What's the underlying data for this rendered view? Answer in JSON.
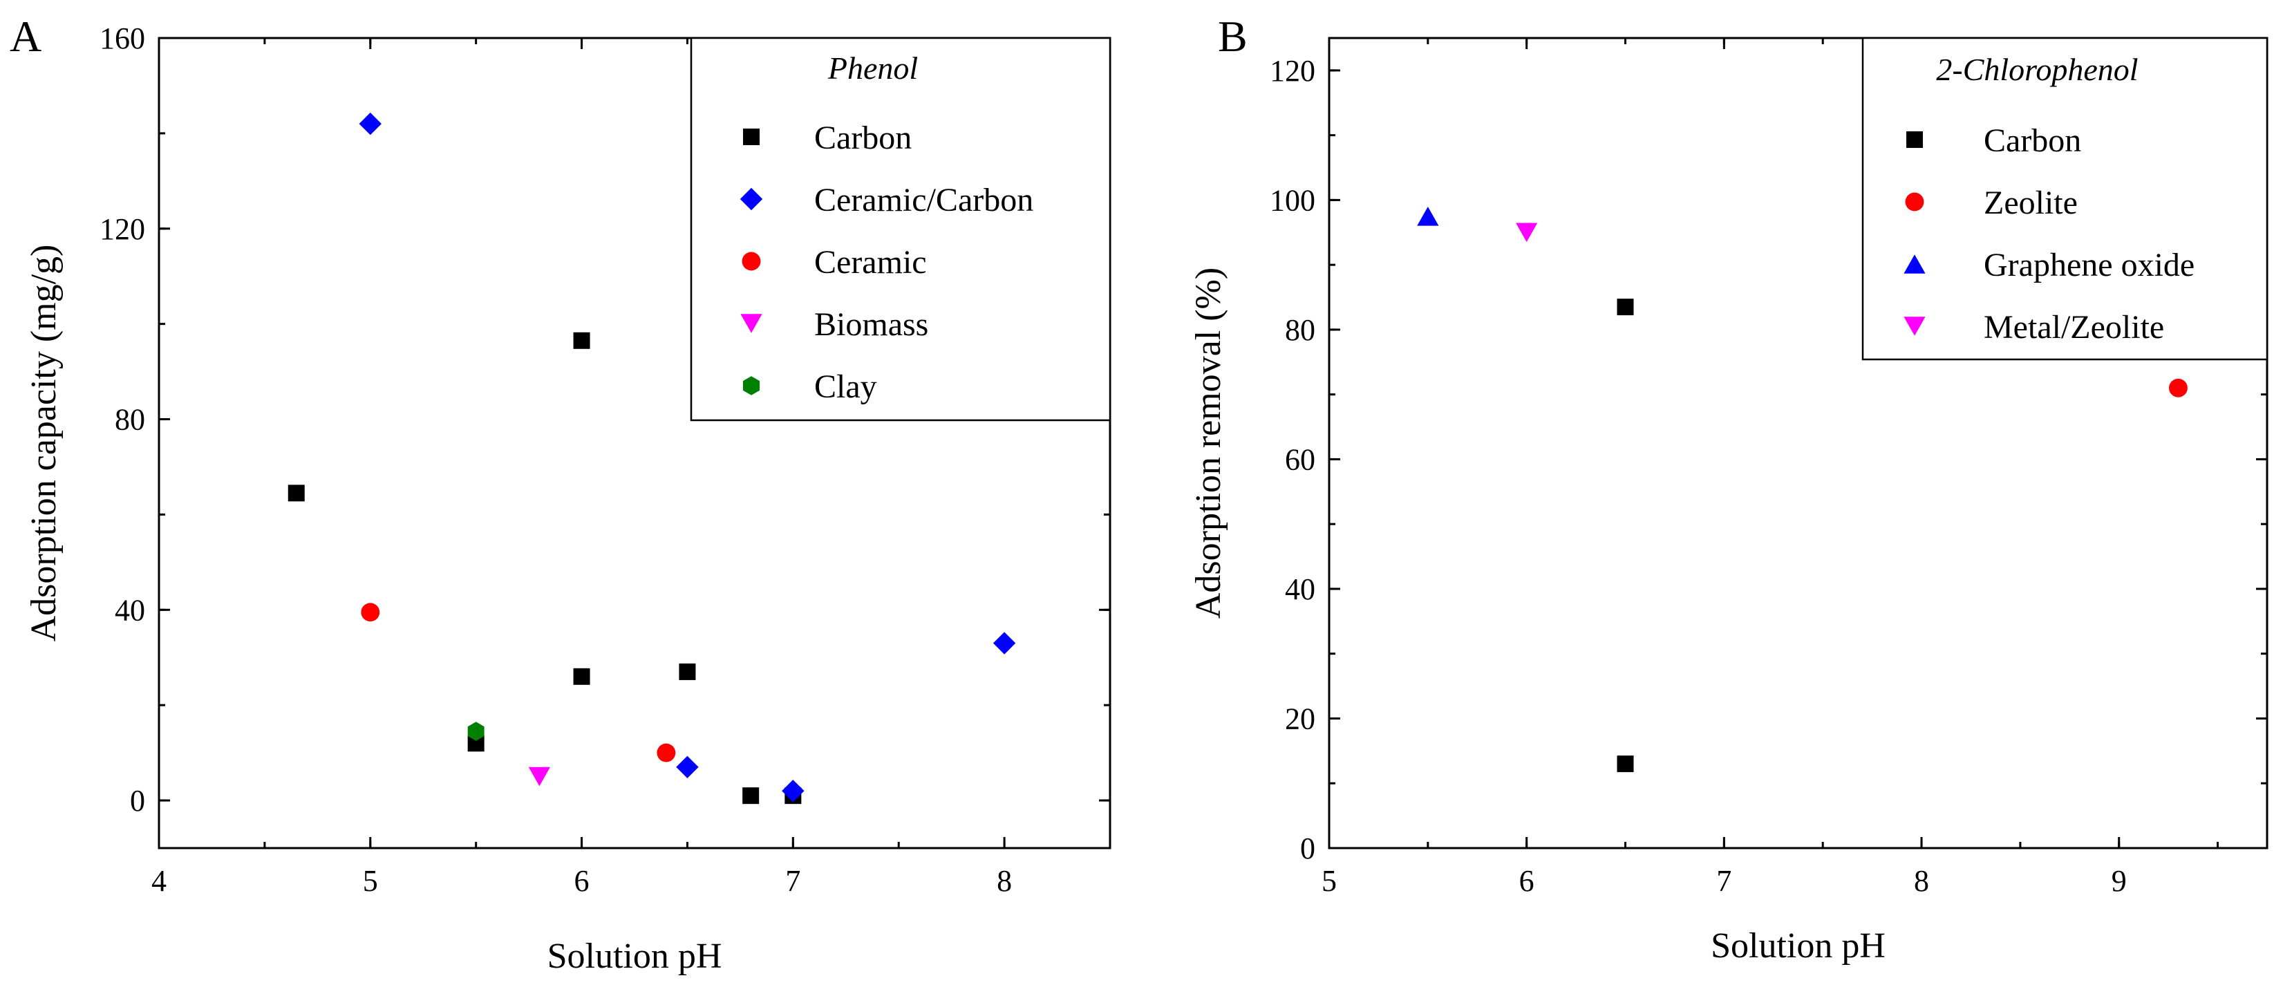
{
  "chart_data": [
    {
      "type": "scatter",
      "panel_label": "A",
      "xlabel": "Solution pH",
      "ylabel": "Adsorption capacity (mg/g)",
      "xlim": [
        4,
        8.5
      ],
      "ylim": [
        -10,
        160
      ],
      "xticks": [
        4,
        5,
        6,
        7,
        8
      ],
      "yticks": [
        0,
        40,
        80,
        120,
        160
      ],
      "legend_title": "Phenol",
      "legend_position": "top-right",
      "series": [
        {
          "name": "Carbon",
          "marker": "square",
          "color": "#000000",
          "points": [
            [
              4.65,
              64.5
            ],
            [
              5.5,
              12
            ],
            [
              6.0,
              96.5
            ],
            [
              6.0,
              26
            ],
            [
              6.5,
              27
            ],
            [
              6.8,
              1
            ],
            [
              7.0,
              1
            ]
          ]
        },
        {
          "name": "Ceramic/Carbon",
          "marker": "diamond",
          "color": "#0000ff",
          "points": [
            [
              5.0,
              142
            ],
            [
              6.5,
              7
            ],
            [
              7.0,
              2
            ],
            [
              8.0,
              33
            ]
          ]
        },
        {
          "name": "Ceramic",
          "marker": "circle",
          "color": "#ff0000",
          "points": [
            [
              5.0,
              39.5
            ],
            [
              6.4,
              10
            ]
          ]
        },
        {
          "name": "Biomass",
          "marker": "triangle-down",
          "color": "#ff00ff",
          "points": [
            [
              5.8,
              5
            ]
          ]
        },
        {
          "name": "Clay",
          "marker": "hexagon",
          "color": "#008000",
          "points": [
            [
              5.5,
              14.5
            ]
          ]
        }
      ]
    },
    {
      "type": "scatter",
      "panel_label": "B",
      "xlabel": "Solution pH",
      "ylabel": "Adsorption removal (%)",
      "xlim": [
        5,
        9.75
      ],
      "ylim": [
        0,
        125
      ],
      "xticks": [
        5,
        6,
        7,
        8,
        9
      ],
      "yticks": [
        0,
        20,
        40,
        60,
        80,
        100,
        120
      ],
      "legend_title": "2-Chlorophenol",
      "legend_position": "top-right",
      "series": [
        {
          "name": "Carbon",
          "marker": "square",
          "color": "#000000",
          "points": [
            [
              6.5,
              83.5
            ],
            [
              6.5,
              13
            ]
          ]
        },
        {
          "name": "Zeolite",
          "marker": "circle",
          "color": "#ff0000",
          "points": [
            [
              9.3,
              71
            ]
          ]
        },
        {
          "name": "Graphene oxide",
          "marker": "triangle-up",
          "color": "#0000ff",
          "points": [
            [
              5.5,
              97.5
            ]
          ]
        },
        {
          "name": "Metal/Zeolite",
          "marker": "triangle-down",
          "color": "#ff00ff",
          "points": [
            [
              6.0,
              95
            ]
          ]
        }
      ]
    }
  ]
}
